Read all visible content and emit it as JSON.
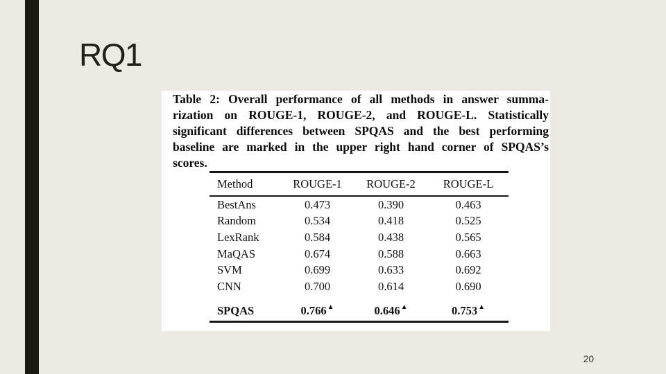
{
  "slide": {
    "title": "RQ1",
    "page_number": "20",
    "colors": {
      "background": "#ECEAE2",
      "accent_bar": "#1B1A10",
      "title_text": "#21201A",
      "figure_background": "#FFFFFF",
      "table_rule": "#141414",
      "table_text": "#121212"
    }
  },
  "figure": {
    "caption_lines": [
      "Table 2: Overall performance of all methods in answer summa-",
      "rization on ROUGE-1, ROUGE-2, and ROUGE-L. Statistically",
      "significant differences between SPQAS and the best performing",
      "baseline are marked in the upper right hand corner of SPQAS’s",
      "scores."
    ],
    "table": {
      "columns": [
        "Method",
        "ROUGE-1",
        "ROUGE-2",
        "ROUGE-L"
      ],
      "rows": [
        {
          "method": "BestAns",
          "rouge1": "0.473",
          "rouge2": "0.390",
          "rougeL": "0.463"
        },
        {
          "method": "Random",
          "rouge1": "0.534",
          "rouge2": "0.418",
          "rougeL": "0.525"
        },
        {
          "method": "LexRank",
          "rouge1": "0.584",
          "rouge2": "0.438",
          "rougeL": "0.565"
        },
        {
          "method": "MaQAS",
          "rouge1": "0.674",
          "rouge2": "0.588",
          "rougeL": "0.663"
        },
        {
          "method": "SVM",
          "rouge1": "0.699",
          "rouge2": "0.633",
          "rougeL": "0.692"
        },
        {
          "method": "CNN",
          "rouge1": "0.700",
          "rouge2": "0.614",
          "rougeL": "0.690"
        }
      ],
      "highlight_row": {
        "method": "SPQAS",
        "rouge1": "0.766",
        "rouge2": "0.646",
        "rougeL": "0.753",
        "marker": "▲"
      }
    }
  }
}
